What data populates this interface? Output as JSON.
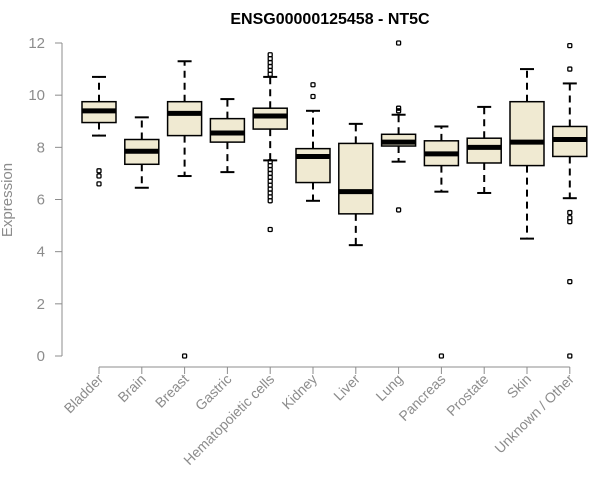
{
  "chart_data": {
    "type": "box",
    "title": "ENSG00000125458 - NT5C",
    "ylabel": "Expression",
    "xlabel": "",
    "ylim": [
      0,
      12
    ],
    "yticks": [
      0,
      2,
      4,
      6,
      8,
      10,
      12
    ],
    "grid": false,
    "legend": "none",
    "box_fill": "#f0ead2",
    "categories": [
      "Bladder",
      "Brain",
      "Breast",
      "Gastric",
      "Hematopoietic cells",
      "Kidney",
      "Liver",
      "Lung",
      "Pancreas",
      "Prostate",
      "Skin",
      "Unknown / Other"
    ],
    "boxes": [
      {
        "whisker_low": 8.45,
        "q1": 8.95,
        "median": 9.4,
        "q3": 9.75,
        "whisker_high": 10.7,
        "outliers": [
          7.1,
          6.9,
          6.6
        ]
      },
      {
        "whisker_low": 6.45,
        "q1": 7.35,
        "median": 7.85,
        "q3": 8.3,
        "whisker_high": 9.15,
        "outliers": []
      },
      {
        "whisker_low": 6.9,
        "q1": 8.45,
        "median": 9.3,
        "q3": 9.75,
        "whisker_high": 11.3,
        "outliers": [
          0
        ]
      },
      {
        "whisker_low": 7.05,
        "q1": 8.2,
        "median": 8.55,
        "q3": 9.1,
        "whisker_high": 9.85,
        "outliers": []
      },
      {
        "whisker_low": 7.5,
        "q1": 8.7,
        "median": 9.2,
        "q3": 9.5,
        "whisker_high": 10.7,
        "outliers": [
          11.55,
          11.4,
          11.25,
          11.1,
          10.95,
          10.8,
          7.45,
          7.3,
          7.15,
          7.0,
          6.85,
          6.7,
          6.55,
          6.4,
          6.25,
          6.1,
          5.95,
          4.85
        ]
      },
      {
        "whisker_low": 5.95,
        "q1": 6.65,
        "median": 7.65,
        "q3": 7.95,
        "whisker_high": 9.4,
        "outliers": [
          10.4,
          9.95
        ]
      },
      {
        "whisker_low": 4.25,
        "q1": 5.45,
        "median": 6.3,
        "q3": 8.15,
        "whisker_high": 8.9,
        "outliers": []
      },
      {
        "whisker_low": 7.45,
        "q1": 8.05,
        "median": 8.2,
        "q3": 8.5,
        "whisker_high": 9.25,
        "outliers": [
          12.0,
          9.5,
          9.4,
          5.6
        ]
      },
      {
        "whisker_low": 6.3,
        "q1": 7.3,
        "median": 7.75,
        "q3": 8.25,
        "whisker_high": 8.8,
        "outliers": [
          0
        ]
      },
      {
        "whisker_low": 6.25,
        "q1": 7.4,
        "median": 8.0,
        "q3": 8.35,
        "whisker_high": 9.55,
        "outliers": []
      },
      {
        "whisker_low": 4.5,
        "q1": 7.3,
        "median": 8.2,
        "q3": 9.75,
        "whisker_high": 11.0,
        "outliers": []
      },
      {
        "whisker_low": 6.05,
        "q1": 7.65,
        "median": 8.3,
        "q3": 8.8,
        "whisker_high": 10.45,
        "outliers": [
          11.9,
          11.0,
          5.5,
          5.3,
          5.15,
          2.85,
          0
        ]
      }
    ]
  }
}
